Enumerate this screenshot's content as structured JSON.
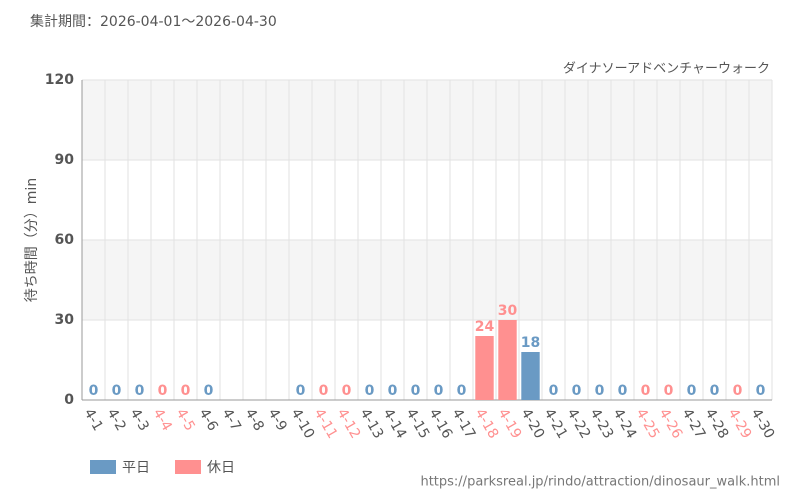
{
  "chart_data": {
    "type": "bar",
    "title": "集計期間：2026-04-01～2026-04-30",
    "subtitle": "ダイナソーアドベンチャーウォーク",
    "y_label": "待ち時間（分）min",
    "source": "https://parksreal.jp/rindo/attraction/dinosaur_walk.html",
    "categories": [
      "4-1",
      "4-2",
      "4-3",
      "4-4",
      "4-5",
      "4-6",
      "4-7",
      "4-8",
      "4-9",
      "4-10",
      "4-11",
      "4-12",
      "4-13",
      "4-14",
      "4-15",
      "4-16",
      "4-17",
      "4-18",
      "4-19",
      "4-20",
      "4-21",
      "4-22",
      "4-23",
      "4-24",
      "4-25",
      "4-26",
      "4-27",
      "4-28",
      "4-29",
      "4-30"
    ],
    "series": [
      {
        "name": "平日",
        "color": "#6a9ac4",
        "values": [
          0,
          0,
          0,
          null,
          null,
          0,
          null,
          null,
          null,
          0,
          null,
          null,
          0,
          0,
          0,
          0,
          0,
          null,
          null,
          18,
          0,
          0,
          0,
          0,
          null,
          null,
          0,
          0,
          null,
          0
        ]
      },
      {
        "name": "休日",
        "color": "#ff9090",
        "values": [
          null,
          null,
          null,
          0,
          0,
          null,
          null,
          null,
          null,
          null,
          0,
          0,
          null,
          null,
          null,
          null,
          null,
          24,
          30,
          null,
          null,
          null,
          null,
          null,
          0,
          0,
          null,
          null,
          0,
          null
        ]
      }
    ],
    "ylim": [
      0,
      120
    ],
    "yticks": [
      0,
      30,
      60,
      90,
      120
    ],
    "grid": true
  }
}
